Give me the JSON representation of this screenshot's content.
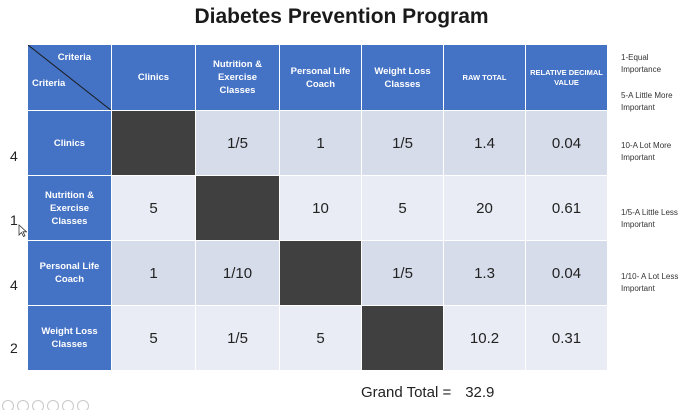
{
  "title": "Diabetes Prevention Program",
  "corner": {
    "top": "Criteria",
    "bottom": "Criteria"
  },
  "headers": [
    "Clinics",
    "Nutrition & Exercise Classes",
    "Personal Life Coach",
    "Weight Loss Classes",
    "RAW TOTAL",
    "RELATIVE DECIMAL VALUE"
  ],
  "rows": [
    {
      "label": "Clinics",
      "weight": "4",
      "cells": [
        "",
        "1/5",
        "1",
        "1/5"
      ],
      "raw_total": "1.4",
      "relative": "0.04"
    },
    {
      "label": "Nutrition & Exercise Classes",
      "weight": "1",
      "cells": [
        "5",
        "",
        "10",
        "5"
      ],
      "raw_total": "20",
      "relative": "0.61"
    },
    {
      "label": "Personal Life Coach",
      "weight": "4",
      "cells": [
        "1",
        "1/10",
        "",
        "1/5"
      ],
      "raw_total": "1.3",
      "relative": "0.04"
    },
    {
      "label": "Weight Loss Classes",
      "weight": "2",
      "cells": [
        "5",
        "1/5",
        "5",
        ""
      ],
      "raw_total": "10.2",
      "relative": "0.31"
    }
  ],
  "legend": [
    "1-Equal Importance",
    "5-A Little More Important",
    "10-A Lot More Important",
    "1/5-A Little Less Important",
    "1/10- A Lot Less Important"
  ],
  "grand_total": {
    "label": "Grand Total =",
    "value": "32.9"
  },
  "colors": {
    "header": "#4472c4",
    "row_dark": "#d6dcea",
    "row_light": "#e9ecf4",
    "diagonal": "#404040"
  }
}
